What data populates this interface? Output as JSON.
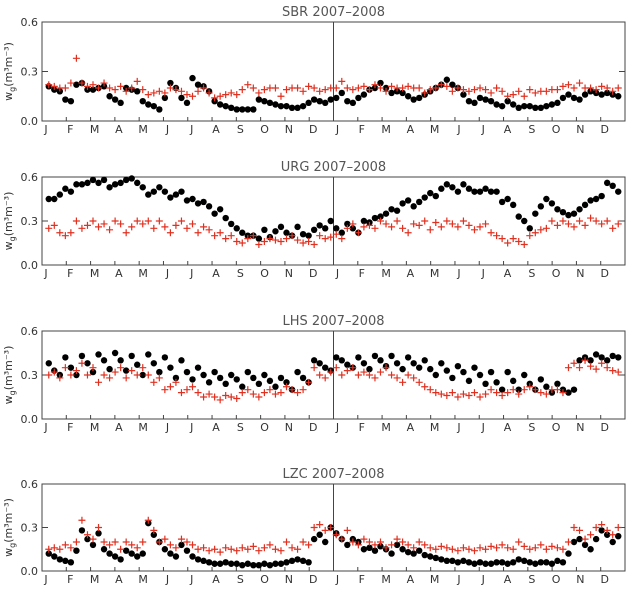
{
  "chart_data": [
    {
      "type": "scatter",
      "title": "SBR 2007–2008",
      "ylabel": "w",
      "ylabel_sub": "g",
      "ylabel_unit": "(m³m⁻³)",
      "ylim": [
        0,
        0.6
      ],
      "yticks": [
        "0.0",
        "0.3",
        "0.6"
      ],
      "xticks": [
        "J",
        "F",
        "M",
        "A",
        "M",
        "J",
        "J",
        "A",
        "S",
        "O",
        "N",
        "D",
        "J",
        "F",
        "M",
        "A",
        "M",
        "J",
        "J",
        "A",
        "S",
        "O",
        "N",
        "D"
      ],
      "series": [
        {
          "marker": "circle",
          "color": "#000000",
          "values": [
            0.21,
            0.19,
            0.18,
            0.13,
            0.12,
            0.22,
            0.23,
            0.19,
            0.19,
            0.2,
            0.21,
            0.15,
            0.13,
            0.11,
            0.2,
            0.19,
            0.18,
            0.12,
            0.1,
            0.09,
            0.07,
            0.14,
            0.23,
            0.2,
            0.14,
            0.11,
            0.26,
            0.22,
            0.21,
            0.18,
            0.12,
            0.1,
            0.09,
            0.08,
            0.07,
            0.07,
            0.07,
            0.07,
            0.13,
            0.12,
            0.11,
            0.1,
            0.09,
            0.09,
            0.08,
            0.08,
            0.09,
            0.11,
            0.13,
            0.12,
            0.11,
            0.13,
            0.14,
            0.17,
            0.12,
            0.11,
            0.14,
            0.16,
            0.19,
            0.2,
            0.23,
            0.2,
            0.17,
            0.18,
            0.17,
            0.15,
            0.13,
            0.14,
            0.16,
            0.18,
            0.2,
            0.22,
            0.25,
            0.22,
            0.2,
            0.16,
            0.12,
            0.11,
            0.14,
            0.13,
            0.12,
            0.1,
            0.09,
            0.12,
            0.1,
            0.08,
            0.09,
            0.09,
            0.08,
            0.08,
            0.09,
            0.1,
            0.11,
            0.14,
            0.16,
            0.14,
            0.13,
            0.16,
            0.18,
            0.17,
            0.16,
            0.17,
            0.16,
            0.15
          ]
        },
        {
          "marker": "plus",
          "color": "#e03020",
          "values": [
            0.22,
            0.21,
            0.2,
            0.2,
            0.23,
            0.38,
            0.23,
            0.21,
            0.22,
            0.2,
            0.23,
            0.2,
            0.19,
            0.21,
            0.18,
            0.2,
            0.24,
            0.19,
            0.16,
            0.17,
            0.18,
            0.17,
            0.2,
            0.19,
            0.18,
            0.16,
            0.15,
            0.18,
            0.2,
            0.17,
            0.14,
            0.15,
            0.16,
            0.17,
            0.16,
            0.19,
            0.22,
            0.2,
            0.17,
            0.19,
            0.2,
            0.2,
            0.15,
            0.19,
            0.2,
            0.2,
            0.18,
            0.21,
            0.2,
            0.18,
            0.19,
            0.2,
            0.2,
            0.24,
            0.2,
            0.19,
            0.2,
            0.21,
            0.19,
            0.22,
            0.2,
            0.18,
            0.21,
            0.2,
            0.2,
            0.21,
            0.2,
            0.2,
            0.17,
            0.19,
            0.2,
            0.22,
            0.21,
            0.18,
            0.2,
            0.19,
            0.18,
            0.19,
            0.2,
            0.19,
            0.17,
            0.2,
            0.18,
            0.15,
            0.16,
            0.18,
            0.15,
            0.19,
            0.17,
            0.18,
            0.18,
            0.19,
            0.19,
            0.21,
            0.22,
            0.2,
            0.23,
            0.2,
            0.2,
            0.19,
            0.21,
            0.2,
            0.18,
            0.2
          ]
        }
      ]
    },
    {
      "type": "scatter",
      "title": "URG 2007–2008",
      "ylabel": "w",
      "ylabel_sub": "g",
      "ylabel_unit": "(m³m⁻³)",
      "ylim": [
        0,
        0.6
      ],
      "yticks": [
        "0.0",
        "0.3",
        "0.6"
      ],
      "xticks": [
        "J",
        "F",
        "M",
        "A",
        "M",
        "J",
        "J",
        "A",
        "S",
        "O",
        "N",
        "D",
        "J",
        "F",
        "M",
        "A",
        "M",
        "J",
        "J",
        "A",
        "S",
        "O",
        "N",
        "D"
      ],
      "series": [
        {
          "marker": "circle",
          "color": "#000000",
          "values": [
            0.45,
            0.45,
            0.48,
            0.52,
            0.5,
            0.55,
            0.55,
            0.56,
            0.58,
            0.56,
            0.58,
            0.53,
            0.55,
            0.56,
            0.58,
            0.59,
            0.56,
            0.53,
            0.48,
            0.5,
            0.53,
            0.5,
            0.46,
            0.48,
            0.5,
            0.44,
            0.45,
            0.42,
            0.43,
            0.4,
            0.35,
            0.38,
            0.32,
            0.28,
            0.25,
            0.22,
            0.2,
            0.2,
            0.18,
            0.24,
            0.19,
            0.23,
            0.26,
            0.22,
            0.2,
            0.26,
            0.21,
            0.2,
            0.24,
            0.27,
            0.25,
            0.3,
            0.25,
            0.22,
            0.28,
            0.25,
            0.22,
            0.3,
            0.29,
            0.32,
            0.33,
            0.35,
            0.38,
            0.37,
            0.42,
            0.44,
            0.4,
            0.43,
            0.46,
            0.49,
            0.47,
            0.52,
            0.55,
            0.53,
            0.5,
            0.55,
            0.52,
            0.5,
            0.5,
            0.52,
            0.5,
            0.5,
            0.43,
            0.45,
            0.41,
            0.33,
            0.3,
            0.25,
            0.35,
            0.4,
            0.45,
            0.42,
            0.38,
            0.36,
            0.34,
            0.35,
            0.38,
            0.41,
            0.44,
            0.45,
            0.47,
            0.56,
            0.54,
            0.5
          ]
        },
        {
          "marker": "plus",
          "color": "#e03020",
          "values": [
            0.25,
            0.27,
            0.22,
            0.2,
            0.22,
            0.3,
            0.25,
            0.27,
            0.3,
            0.26,
            0.28,
            0.24,
            0.3,
            0.28,
            0.22,
            0.26,
            0.3,
            0.28,
            0.3,
            0.25,
            0.3,
            0.26,
            0.22,
            0.27,
            0.3,
            0.25,
            0.28,
            0.22,
            0.26,
            0.24,
            0.2,
            0.22,
            0.18,
            0.2,
            0.16,
            0.15,
            0.18,
            0.2,
            0.14,
            0.16,
            0.18,
            0.17,
            0.16,
            0.18,
            0.2,
            0.17,
            0.15,
            0.16,
            0.14,
            0.2,
            0.18,
            0.19,
            0.21,
            0.18,
            0.25,
            0.28,
            0.22,
            0.26,
            0.27,
            0.25,
            0.3,
            0.28,
            0.26,
            0.3,
            0.25,
            0.22,
            0.28,
            0.27,
            0.3,
            0.24,
            0.29,
            0.26,
            0.3,
            0.28,
            0.26,
            0.3,
            0.27,
            0.24,
            0.26,
            0.28,
            0.22,
            0.2,
            0.18,
            0.15,
            0.18,
            0.16,
            0.14,
            0.2,
            0.22,
            0.24,
            0.25,
            0.3,
            0.27,
            0.3,
            0.28,
            0.26,
            0.3,
            0.27,
            0.32,
            0.3,
            0.28,
            0.3,
            0.25,
            0.28
          ]
        }
      ]
    },
    {
      "type": "scatter",
      "title": "LHS 2007–2008",
      "ylabel": "w",
      "ylabel_sub": "g",
      "ylabel_unit": "(m³m⁻³)",
      "ylim": [
        0,
        0.6
      ],
      "yticks": [
        "0.0",
        "0.3",
        "0.6"
      ],
      "xticks": [
        "J",
        "F",
        "M",
        "A",
        "M",
        "J",
        "J",
        "A",
        "S",
        "O",
        "N",
        "D",
        "J",
        "F",
        "M",
        "A",
        "M",
        "J",
        "J",
        "A",
        "S",
        "O",
        "N",
        "D"
      ],
      "series": [
        {
          "marker": "circle",
          "color": "#000000",
          "values": [
            0.38,
            0.33,
            0.3,
            0.42,
            0.35,
            0.3,
            0.43,
            0.38,
            0.32,
            0.44,
            0.4,
            0.34,
            0.45,
            0.4,
            0.33,
            0.43,
            0.37,
            0.3,
            0.44,
            0.38,
            0.32,
            0.42,
            0.35,
            0.28,
            0.4,
            0.32,
            0.27,
            0.35,
            0.3,
            0.25,
            0.32,
            0.28,
            0.24,
            0.3,
            0.27,
            0.22,
            0.32,
            0.28,
            0.24,
            0.3,
            0.26,
            0.22,
            0.28,
            0.25,
            0.2,
            0.32,
            0.28,
            0.25,
            0.4,
            0.38,
            0.35,
            0.33,
            0.42,
            0.4,
            0.37,
            0.35,
            0.42,
            0.38,
            0.34,
            0.43,
            0.4,
            0.36,
            0.43,
            0.38,
            0.34,
            0.42,
            0.38,
            0.35,
            0.4,
            0.34,
            0.3,
            0.38,
            0.33,
            0.28,
            0.36,
            0.32,
            0.26,
            0.35,
            0.3,
            0.24,
            0.32,
            0.25,
            0.2,
            0.32,
            0.26,
            0.2,
            0.3,
            0.24,
            0.2,
            0.27,
            0.22,
            0.18,
            0.24,
            0.2,
            0.18,
            0.2,
            0.4,
            0.42,
            0.4,
            0.44,
            0.42,
            0.4,
            0.43,
            0.42
          ]
        },
        {
          "marker": "plus",
          "color": "#e03020",
          "values": [
            0.3,
            0.32,
            0.28,
            0.35,
            0.3,
            0.33,
            0.38,
            0.3,
            0.35,
            0.25,
            0.3,
            0.28,
            0.32,
            0.35,
            0.28,
            0.33,
            0.3,
            0.35,
            0.3,
            0.25,
            0.28,
            0.2,
            0.22,
            0.25,
            0.18,
            0.2,
            0.22,
            0.18,
            0.15,
            0.17,
            0.15,
            0.13,
            0.16,
            0.15,
            0.14,
            0.18,
            0.2,
            0.17,
            0.15,
            0.18,
            0.2,
            0.17,
            0.18,
            0.22,
            0.2,
            0.18,
            0.2,
            0.25,
            0.35,
            0.3,
            0.28,
            0.32,
            0.35,
            0.3,
            0.33,
            0.35,
            0.3,
            0.32,
            0.3,
            0.28,
            0.32,
            0.35,
            0.3,
            0.28,
            0.25,
            0.3,
            0.28,
            0.25,
            0.22,
            0.2,
            0.18,
            0.17,
            0.16,
            0.18,
            0.15,
            0.17,
            0.16,
            0.18,
            0.15,
            0.17,
            0.2,
            0.18,
            0.16,
            0.18,
            0.2,
            0.17,
            0.2,
            0.22,
            0.2,
            0.18,
            0.17,
            0.2,
            0.2,
            0.18,
            0.35,
            0.38,
            0.35,
            0.4,
            0.36,
            0.34,
            0.38,
            0.35,
            0.33,
            0.32
          ]
        }
      ]
    },
    {
      "type": "scatter",
      "title": "LZC 2007–2008",
      "ylabel": "w",
      "ylabel_sub": "g",
      "ylabel_unit": "(m³m⁻³)",
      "ylim": [
        0,
        0.6
      ],
      "yticks": [
        "0.0",
        "0.3",
        "0.6"
      ],
      "xticks": [
        "J",
        "F",
        "M",
        "A",
        "M",
        "J",
        "J",
        "A",
        "S",
        "O",
        "N",
        "D",
        "J",
        "F",
        "M",
        "A",
        "M",
        "J",
        "J",
        "A",
        "S",
        "O",
        "N",
        "D"
      ],
      "series": [
        {
          "marker": "circle",
          "color": "#000000",
          "values": [
            0.12,
            0.1,
            0.08,
            0.07,
            0.06,
            0.14,
            0.28,
            0.22,
            0.18,
            0.26,
            0.15,
            0.12,
            0.1,
            0.08,
            0.14,
            0.12,
            0.1,
            0.12,
            0.33,
            0.25,
            0.2,
            0.15,
            0.12,
            0.1,
            0.18,
            0.14,
            0.1,
            0.08,
            0.07,
            0.06,
            0.05,
            0.05,
            0.06,
            0.05,
            0.05,
            0.04,
            0.05,
            0.04,
            0.04,
            0.05,
            0.04,
            0.05,
            0.05,
            0.06,
            0.07,
            0.08,
            0.07,
            0.06,
            0.22,
            0.25,
            0.2,
            0.3,
            0.26,
            0.22,
            0.18,
            0.22,
            0.2,
            0.15,
            0.16,
            0.14,
            0.17,
            0.15,
            0.12,
            0.18,
            0.15,
            0.13,
            0.12,
            0.14,
            0.11,
            0.1,
            0.09,
            0.08,
            0.07,
            0.07,
            0.06,
            0.07,
            0.06,
            0.05,
            0.06,
            0.05,
            0.05,
            0.06,
            0.06,
            0.05,
            0.06,
            0.08,
            0.07,
            0.06,
            0.05,
            0.06,
            0.06,
            0.05,
            0.07,
            0.06,
            0.12,
            0.2,
            0.22,
            0.18,
            0.15,
            0.22,
            0.28,
            0.25,
            0.2,
            0.24
          ]
        },
        {
          "marker": "plus",
          "color": "#e03020",
          "values": [
            0.15,
            0.16,
            0.15,
            0.18,
            0.16,
            0.2,
            0.35,
            0.25,
            0.22,
            0.3,
            0.2,
            0.18,
            0.2,
            0.15,
            0.2,
            0.18,
            0.16,
            0.2,
            0.35,
            0.28,
            0.2,
            0.22,
            0.18,
            0.16,
            0.22,
            0.2,
            0.18,
            0.15,
            0.16,
            0.14,
            0.15,
            0.13,
            0.16,
            0.15,
            0.14,
            0.16,
            0.15,
            0.17,
            0.14,
            0.16,
            0.18,
            0.15,
            0.14,
            0.2,
            0.16,
            0.15,
            0.2,
            0.18,
            0.3,
            0.32,
            0.28,
            0.3,
            0.25,
            0.22,
            0.28,
            0.2,
            0.18,
            0.22,
            0.2,
            0.18,
            0.2,
            0.16,
            0.18,
            0.22,
            0.2,
            0.18,
            0.16,
            0.2,
            0.18,
            0.16,
            0.15,
            0.17,
            0.16,
            0.15,
            0.14,
            0.16,
            0.15,
            0.14,
            0.16,
            0.15,
            0.17,
            0.16,
            0.18,
            0.16,
            0.15,
            0.2,
            0.17,
            0.15,
            0.16,
            0.18,
            0.15,
            0.17,
            0.16,
            0.15,
            0.2,
            0.3,
            0.28,
            0.22,
            0.25,
            0.3,
            0.32,
            0.28,
            0.25,
            0.3
          ]
        }
      ]
    }
  ]
}
